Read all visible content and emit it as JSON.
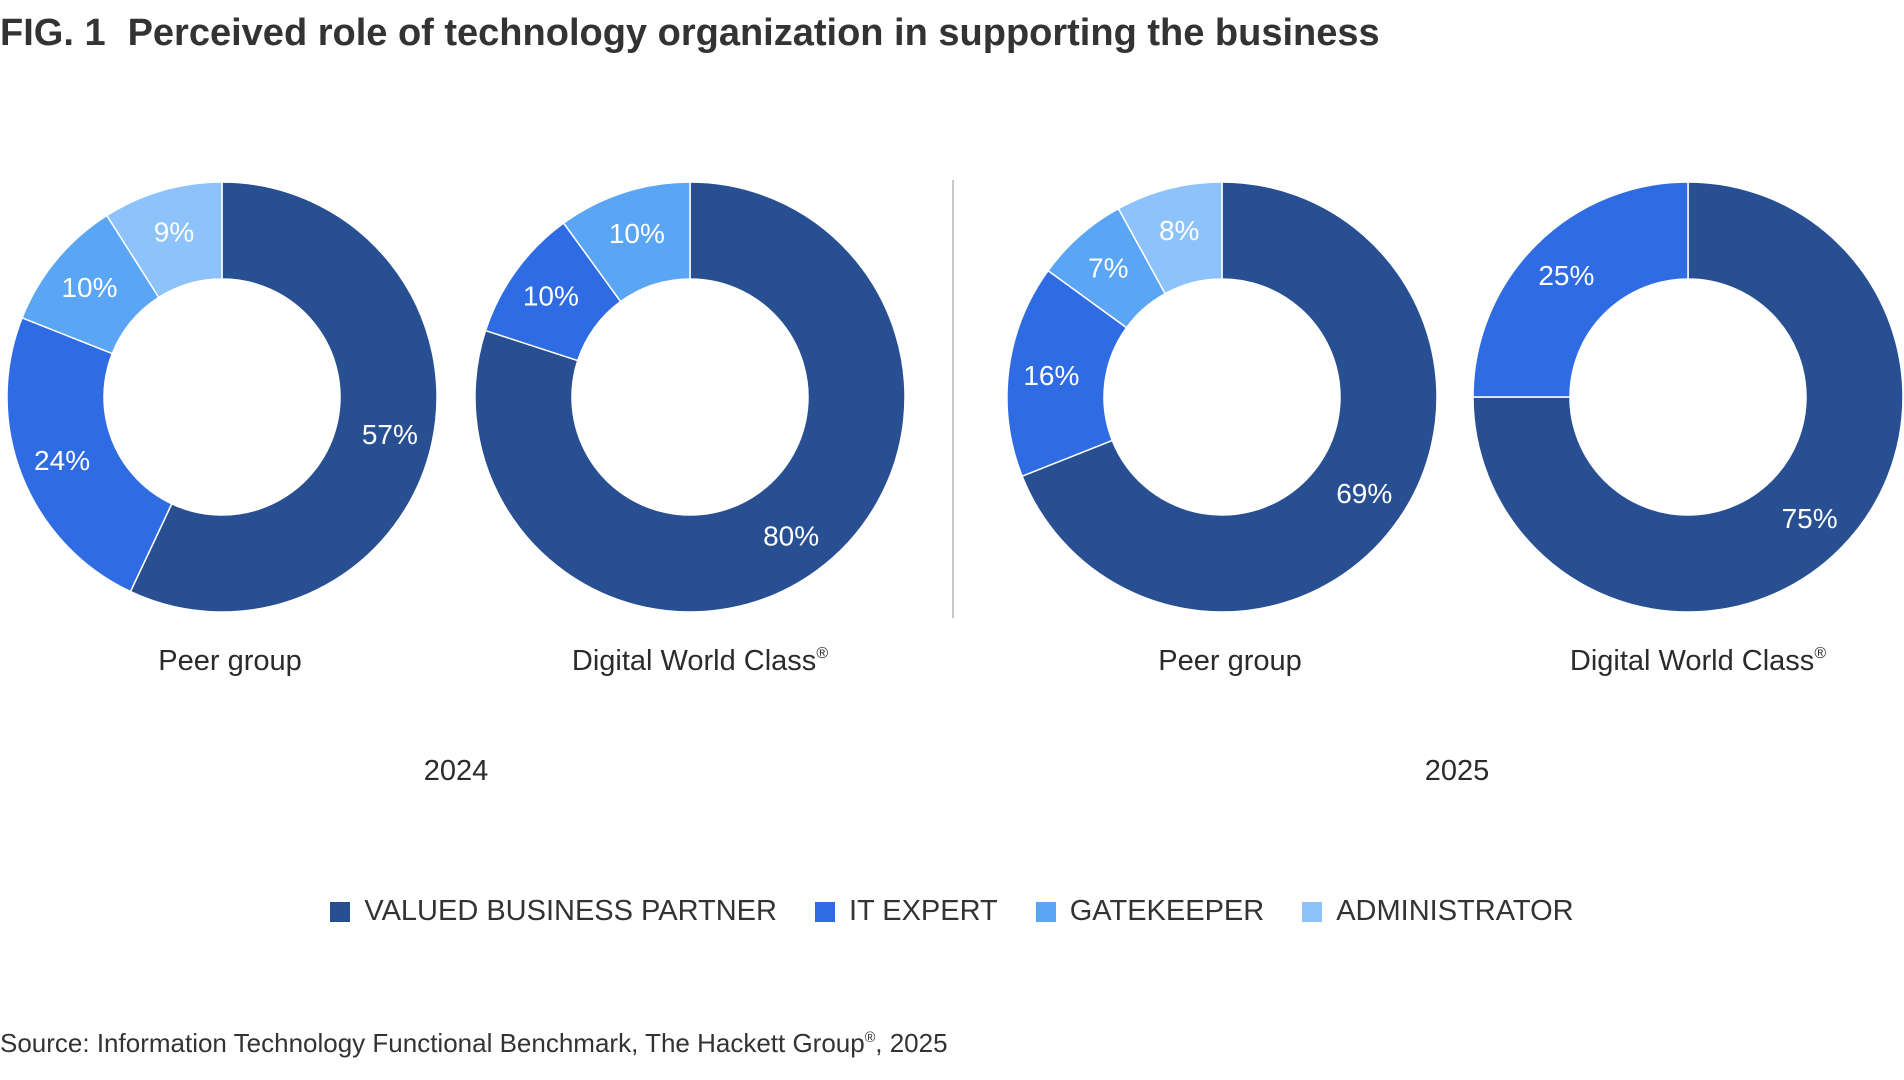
{
  "title": {
    "fig": "FIG. 1",
    "text": "Perceived role of technology organization in supporting the business"
  },
  "chart_data": {
    "type": "pie",
    "categories": [
      "VALUED BUSINESS PARTNER",
      "IT EXPERT",
      "GATEKEEPER",
      "ADMINISTRATOR"
    ],
    "colors": [
      "#284f91",
      "#2f6be3",
      "#5ba5f5",
      "#8dc3fa"
    ],
    "groups": [
      {
        "year": "2024",
        "charts": [
          {
            "name": "Peer group",
            "sup": "",
            "values": [
              57,
              24,
              10,
              9
            ],
            "labels": [
              "57%",
              "24%",
              "10%",
              "9%"
            ]
          },
          {
            "name": "Digital World Class",
            "sup": "®",
            "values": [
              80,
              10,
              10,
              0
            ],
            "labels": [
              "80%",
              "10%",
              "10%",
              ""
            ]
          }
        ]
      },
      {
        "year": "2025",
        "charts": [
          {
            "name": "Peer group",
            "sup": "",
            "values": [
              69,
              16,
              7,
              8
            ],
            "labels": [
              "69%",
              "16%",
              "7%",
              "8%"
            ]
          },
          {
            "name": "Digital World Class",
            "sup": "®",
            "values": [
              75,
              25,
              0,
              0
            ],
            "labels": [
              "75%",
              "25%",
              "",
              ""
            ]
          }
        ]
      }
    ]
  },
  "legend": [
    {
      "label": "VALUED BUSINESS PARTNER",
      "color": "#284f91"
    },
    {
      "label": "IT EXPERT",
      "color": "#2f6be3"
    },
    {
      "label": "GATEKEEPER",
      "color": "#5ba5f5"
    },
    {
      "label": "ADMINISTRATOR",
      "color": "#8dc3fa"
    }
  ],
  "source": {
    "text": "Source: Information Technology Functional Benchmark, The Hackett Group",
    "sup": "®",
    "suffix": ", 2025"
  }
}
